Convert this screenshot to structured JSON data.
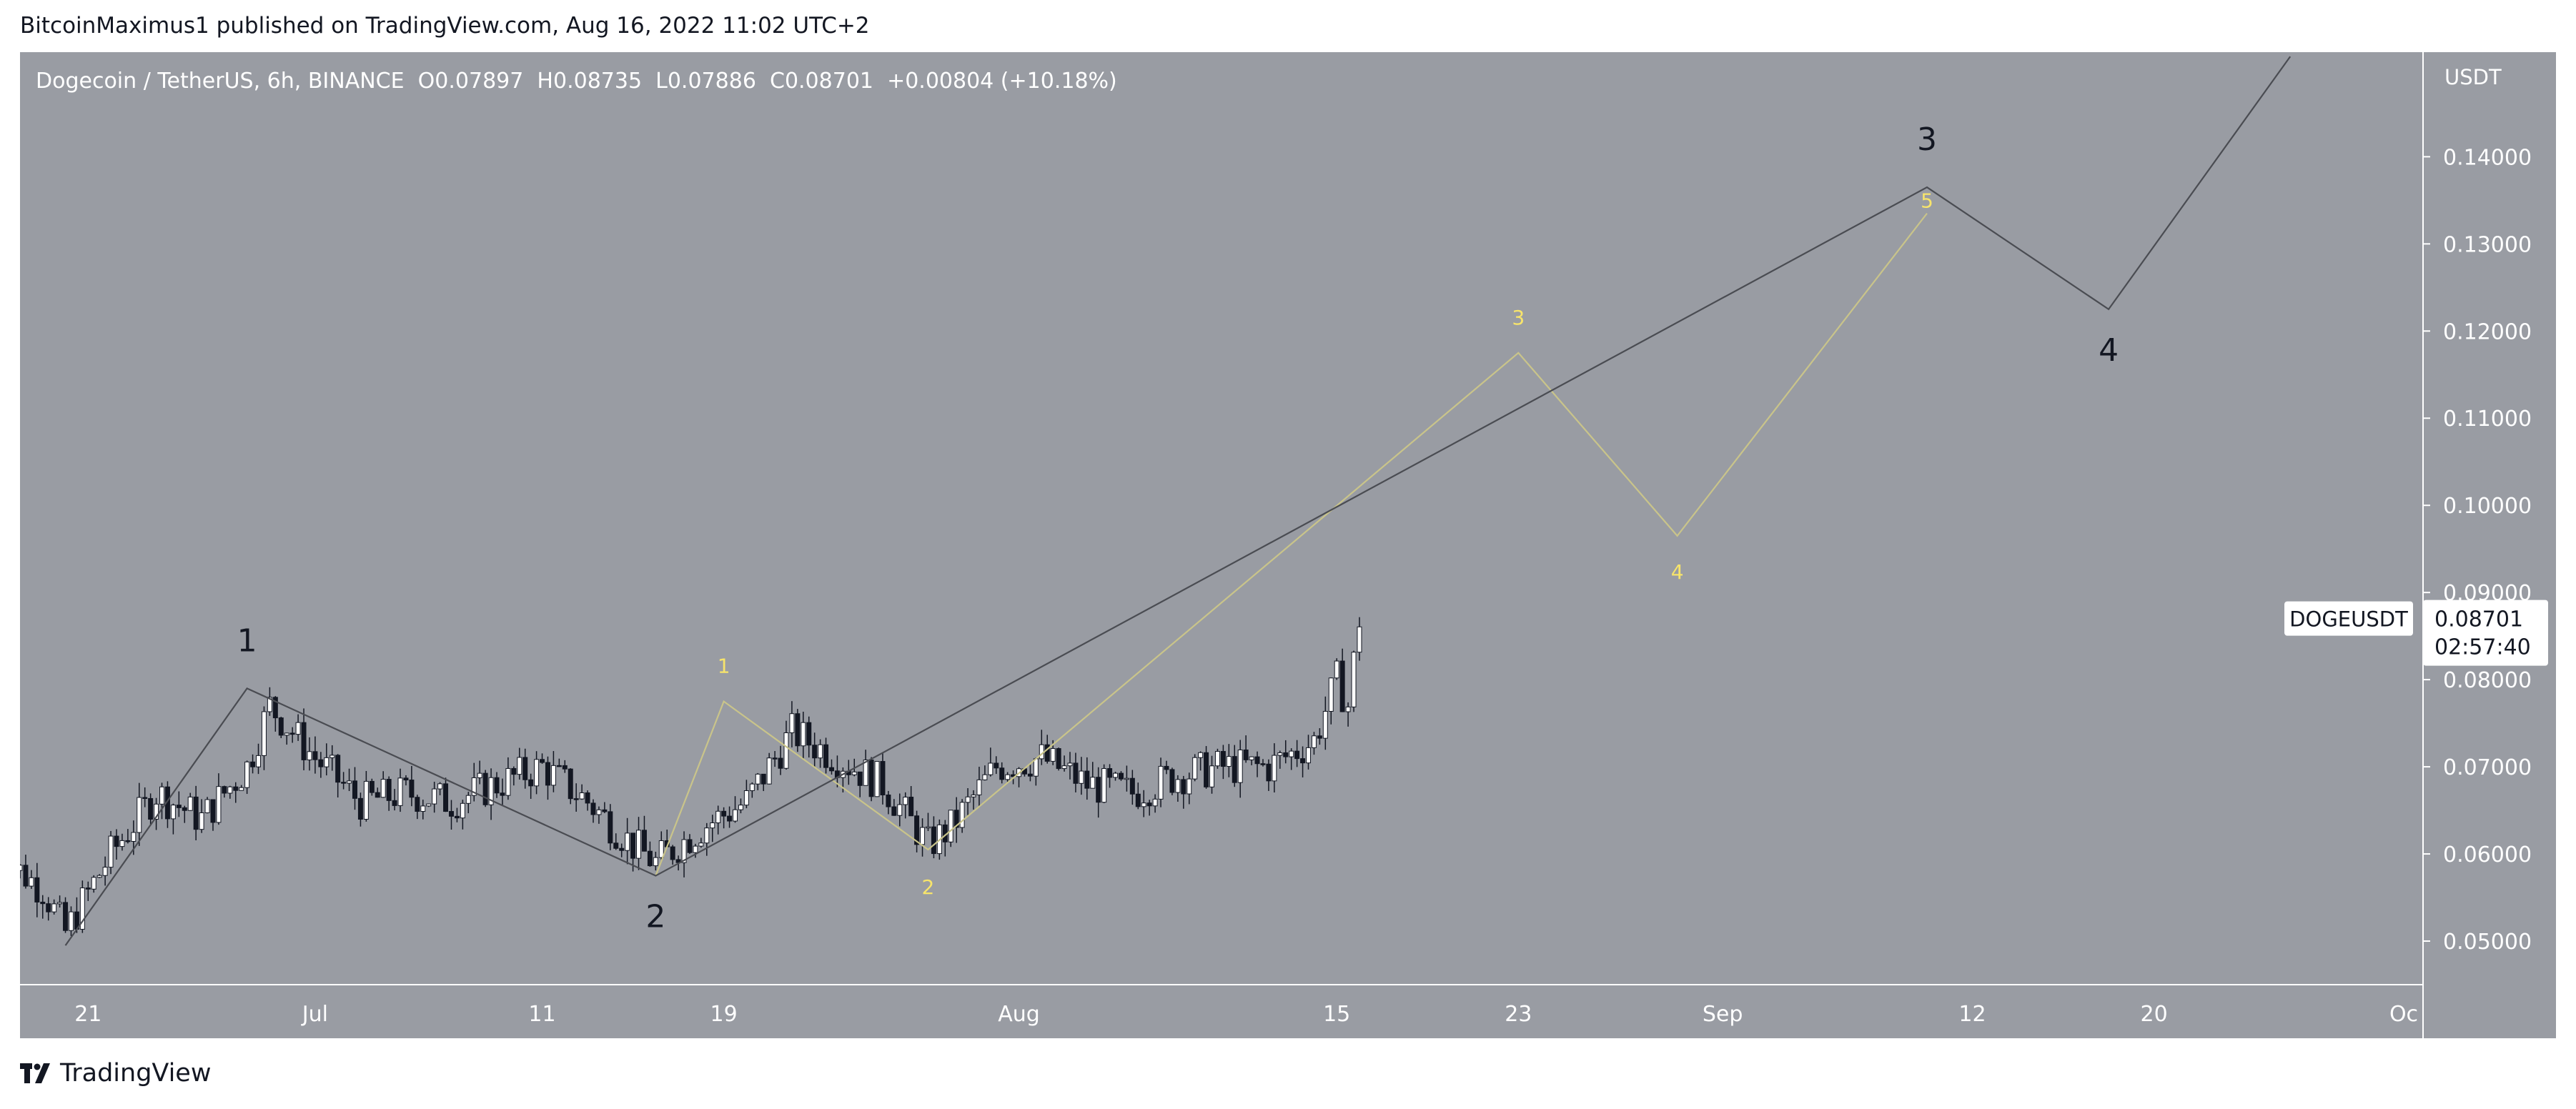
{
  "header": {
    "publisher": "BitcoinMaximus1 published on TradingView.com, Aug 16, 2022 11:02 UTC+2"
  },
  "legend": {
    "symbol": "Dogecoin / TetherUS, 6h, BINANCE",
    "open_label": "O",
    "open": "0.07897",
    "high_label": "H",
    "high": "0.08735",
    "low_label": "L",
    "low": "0.07886",
    "close_label": "C",
    "close": "0.08701",
    "change": "+0.00804 (+10.18%)"
  },
  "footer": {
    "brand": "TradingView",
    "logo_icon": "tradingview-logo-icon"
  },
  "price_tag": {
    "ticker": "DOGEUSDT",
    "price": "0.08701",
    "countdown": "02:57:40"
  },
  "chart_data": {
    "type": "candlestick",
    "y_axis_label": "USDT",
    "ylim": [
      0.045,
      0.152
    ],
    "y_ticks": [
      "0.14000",
      "0.13000",
      "0.12000",
      "0.11000",
      "0.10000",
      "0.09000",
      "0.08000",
      "0.07000",
      "0.06000",
      "0.05000"
    ],
    "y_tick_values": [
      0.14,
      0.13,
      0.12,
      0.11,
      0.1,
      0.09,
      0.08,
      0.07,
      0.06,
      0.05
    ],
    "x_start": "2022-06-17",
    "x_end": "2022-10-01",
    "x_ticks": [
      {
        "label": "21",
        "date": "2022-06-21"
      },
      {
        "label": "Jul",
        "date": "2022-07-01"
      },
      {
        "label": "11",
        "date": "2022-07-11"
      },
      {
        "label": "19",
        "date": "2022-07-19"
      },
      {
        "label": "Aug",
        "date": "2022-08-01"
      },
      {
        "label": "15",
        "date": "2022-08-15"
      },
      {
        "label": "23",
        "date": "2022-08-23"
      },
      {
        "label": "Sep",
        "date": "2022-09-01"
      },
      {
        "label": "12",
        "date": "2022-09-12"
      },
      {
        "label": "20",
        "date": "2022-09-20"
      },
      {
        "label": "Oc",
        "date": "2022-10-01"
      }
    ],
    "price_path": [
      [
        "2022-06-17",
        0.06
      ],
      [
        "2022-06-19",
        0.056
      ],
      [
        "2022-06-20",
        0.051
      ],
      [
        "2022-06-22",
        0.06
      ],
      [
        "2022-06-24",
        0.067
      ],
      [
        "2022-06-26",
        0.064
      ],
      [
        "2022-06-28",
        0.07
      ],
      [
        "2022-06-29",
        0.077
      ],
      [
        "2022-07-01",
        0.071
      ],
      [
        "2022-07-03",
        0.066
      ],
      [
        "2022-07-05",
        0.067
      ],
      [
        "2022-07-07",
        0.066
      ],
      [
        "2022-07-09",
        0.068
      ],
      [
        "2022-07-11",
        0.07
      ],
      [
        "2022-07-13",
        0.066
      ],
      [
        "2022-07-15",
        0.061
      ],
      [
        "2022-07-16",
        0.059
      ],
      [
        "2022-07-18",
        0.063
      ],
      [
        "2022-07-20",
        0.066
      ],
      [
        "2022-07-22",
        0.074
      ],
      [
        "2022-07-24",
        0.071
      ],
      [
        "2022-07-26",
        0.068
      ],
      [
        "2022-07-28",
        0.061
      ],
      [
        "2022-07-29",
        0.063
      ],
      [
        "2022-07-31",
        0.07
      ],
      [
        "2022-08-02",
        0.071
      ],
      [
        "2022-08-04",
        0.068
      ],
      [
        "2022-08-06",
        0.067
      ],
      [
        "2022-08-08",
        0.069
      ],
      [
        "2022-08-10",
        0.07
      ],
      [
        "2022-08-12",
        0.07
      ],
      [
        "2022-08-14",
        0.073
      ],
      [
        "2022-08-15",
        0.08
      ],
      [
        "2022-08-15.5",
        0.077
      ],
      [
        "2022-08-16",
        0.087
      ]
    ],
    "wave_labels_black": [
      {
        "label": "1",
        "date": "2022-06-28",
        "value": 0.079
      },
      {
        "label": "2",
        "date": "2022-07-16",
        "value": 0.0575
      },
      {
        "label": "3",
        "date": "2022-09-10",
        "value": 0.1365
      },
      {
        "label": "4",
        "date": "2022-09-18",
        "value": 0.1225
      }
    ],
    "projection_black": [
      [
        "2022-06-20",
        0.0495
      ],
      [
        "2022-06-28",
        0.079
      ],
      [
        "2022-07-16",
        0.0575
      ],
      [
        "2022-09-10",
        0.1365
      ],
      [
        "2022-09-18",
        0.1225
      ],
      [
        "2022-09-26",
        0.1515
      ]
    ],
    "wave_labels_yellow": [
      {
        "label": "1",
        "date": "2022-07-19",
        "value": 0.0775
      },
      {
        "label": "2",
        "date": "2022-07-28",
        "value": 0.0605
      },
      {
        "label": "3",
        "date": "2022-08-23",
        "value": 0.1175
      },
      {
        "label": "4",
        "date": "2022-08-30",
        "value": 0.0965
      },
      {
        "label": "5",
        "date": "2022-09-10",
        "value": 0.1335
      }
    ],
    "projection_yellow": [
      [
        "2022-07-16",
        0.0575
      ],
      [
        "2022-07-19",
        0.0775
      ],
      [
        "2022-07-28",
        0.0605
      ],
      [
        "2022-08-23",
        0.1175
      ],
      [
        "2022-08-30",
        0.0965
      ],
      [
        "2022-09-10",
        0.1335
      ]
    ],
    "colors": {
      "background": "#999ca3",
      "projection_black": "#4a4c52",
      "projection_yellow": "#c9c48a",
      "wave_label_yellow": "#f7e46b",
      "axis_text": "#ffffff"
    }
  }
}
